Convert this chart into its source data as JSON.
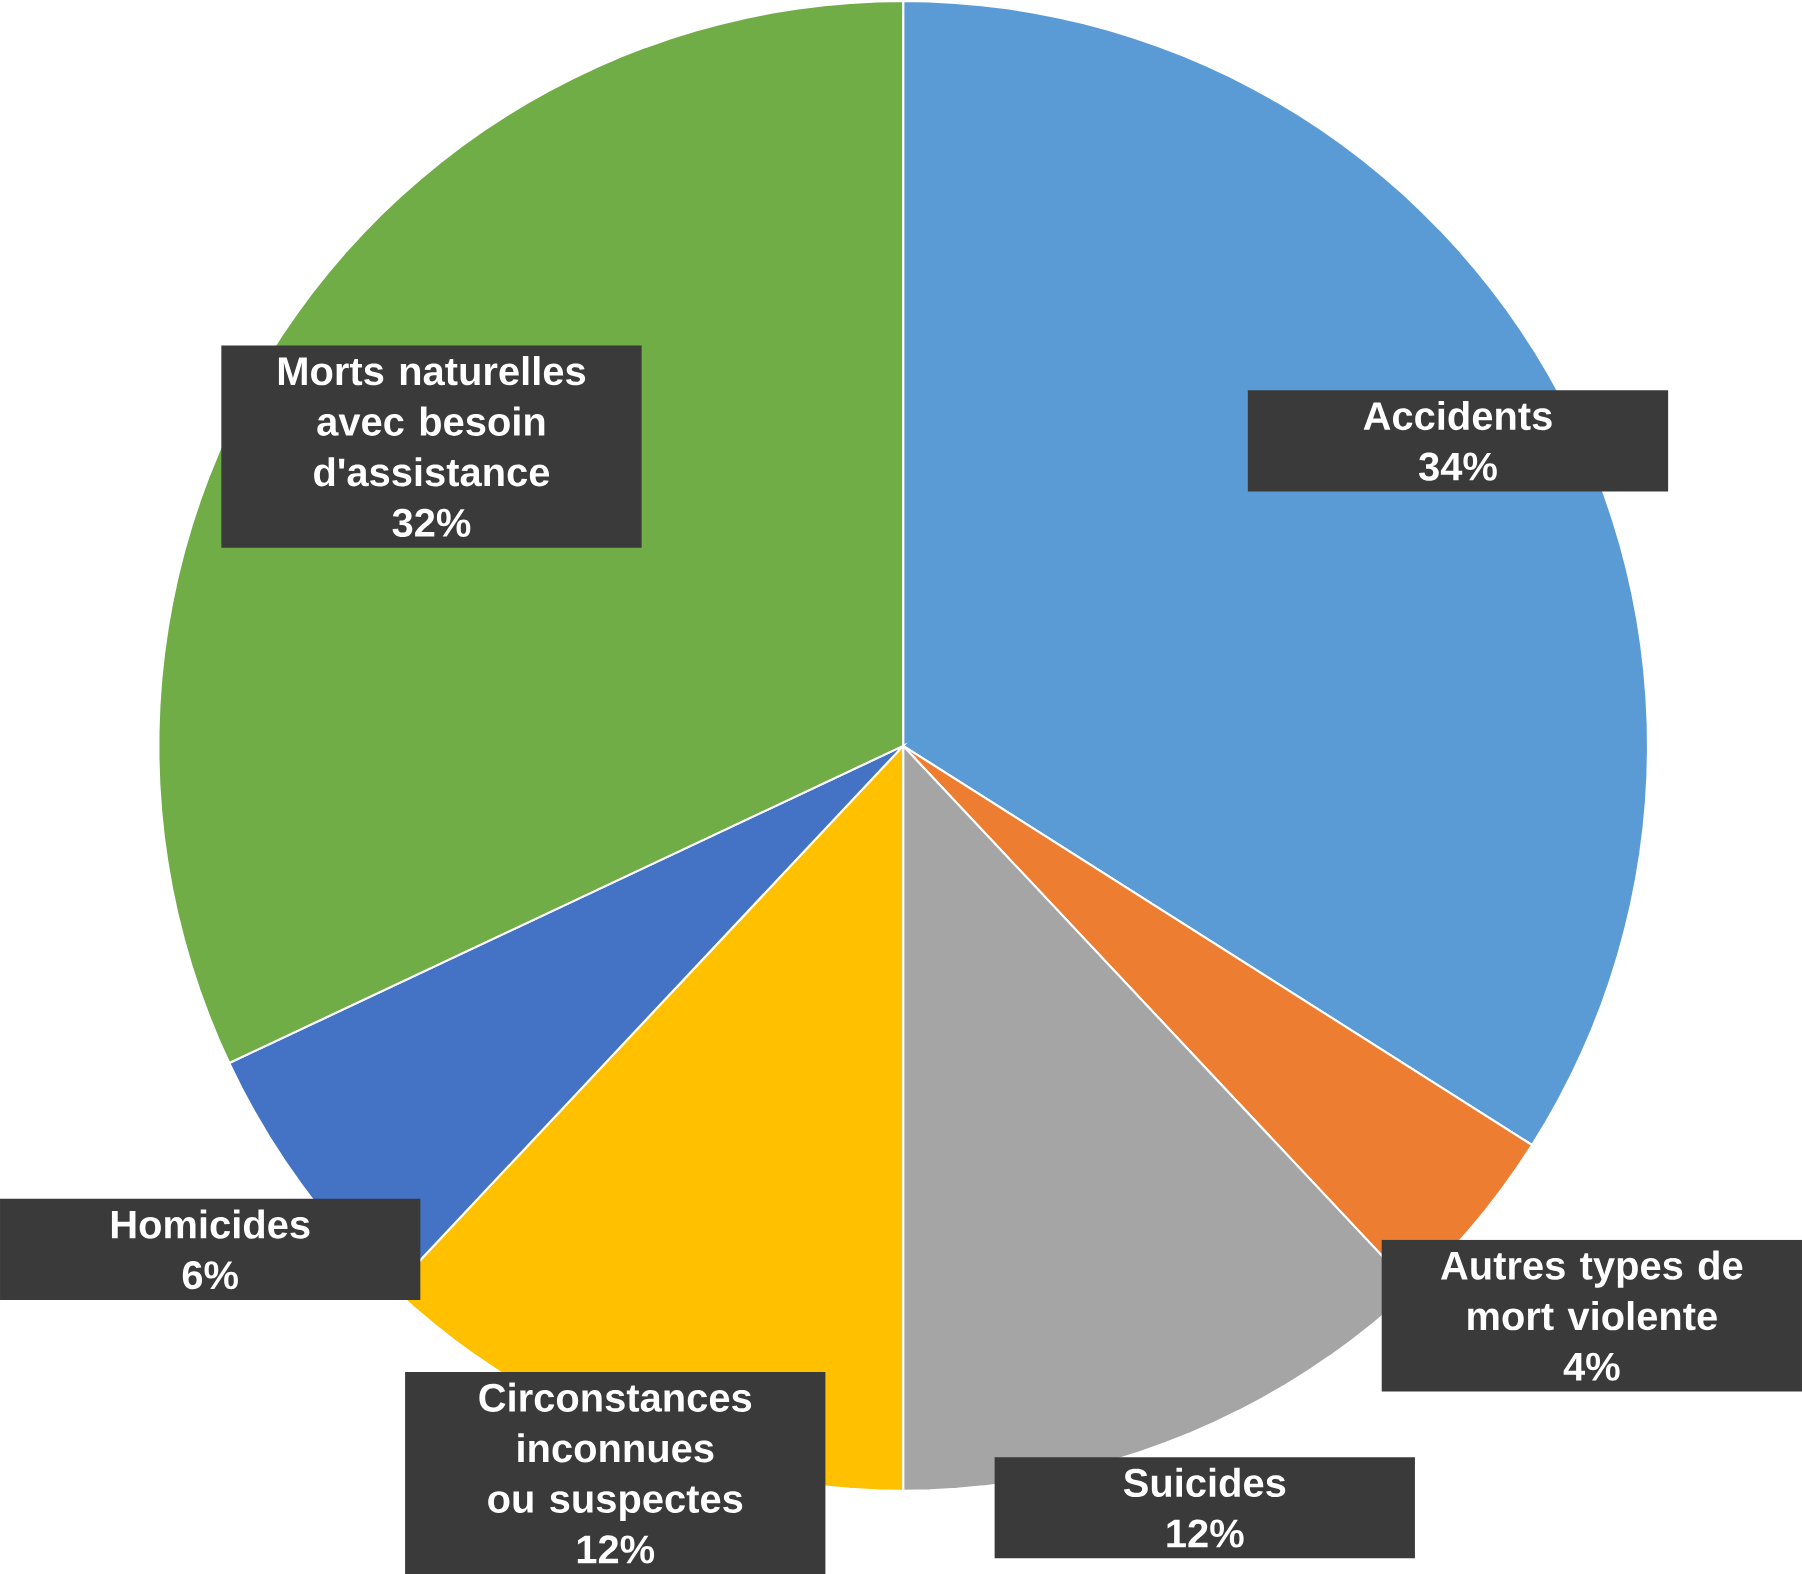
{
  "chart_data": {
    "type": "pie",
    "categories": [
      "Accidents",
      "Autres types de mort violente",
      "Suicides",
      "Circonstances inconnues ou suspectes",
      "Homicides",
      "Morts naturelles avec besoin d'assistance"
    ],
    "values": [
      34,
      4,
      12,
      12,
      6,
      32
    ],
    "value_labels": [
      "34%",
      "4%",
      "12%",
      "12%",
      "6%",
      "32%"
    ],
    "colors": [
      "#5b9bd5",
      "#ed7d31",
      "#a5a5a5",
      "#ffc000",
      "#4472c4",
      "#70ad47"
    ]
  }
}
